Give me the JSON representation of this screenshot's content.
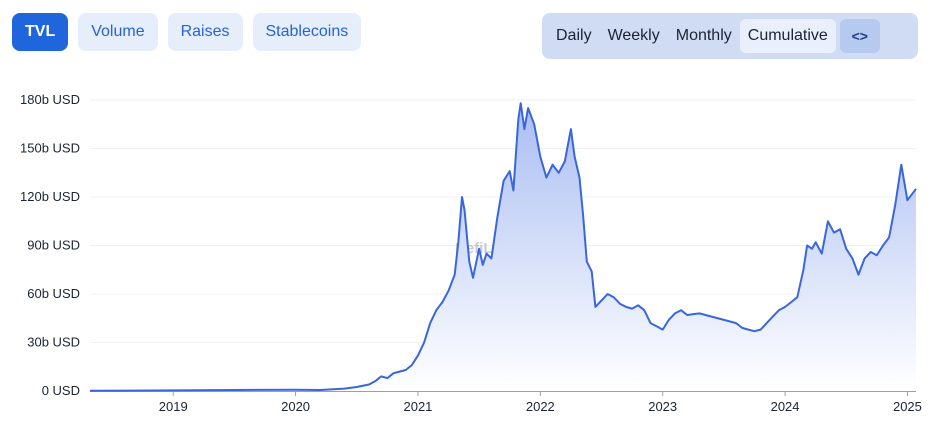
{
  "tabs": [
    {
      "label": "TVL",
      "active": true
    },
    {
      "label": "Volume",
      "active": false
    },
    {
      "label": "Raises",
      "active": false
    },
    {
      "label": "Stablecoins",
      "active": false
    }
  ],
  "periods": [
    {
      "label": "Daily",
      "active": false
    },
    {
      "label": "Weekly",
      "active": false
    },
    {
      "label": "Monthly",
      "active": false
    },
    {
      "label": "Cumulative",
      "active": true
    }
  ],
  "embed_icon": "code-brackets-icon",
  "embed_label": "<>",
  "watermark": "DefiLlama",
  "colors": {
    "line": "#3a66dd",
    "fill_top": "#a9bdf2",
    "fill_bottom": "#ffffff",
    "grid": "#eef0f4",
    "axis": "#9aa0aa"
  },
  "chart_data": {
    "type": "area",
    "title": "",
    "xlabel": "",
    "ylabel": "",
    "unit": "USD",
    "x_ticks": [
      "2019",
      "2020",
      "2021",
      "2022",
      "2023",
      "2024",
      "2025"
    ],
    "y_ticks": [
      "0 USD",
      "30b USD",
      "60b USD",
      "90b USD",
      "120b USD",
      "150b USD",
      "180b USD"
    ],
    "ylim": [
      0,
      180
    ],
    "xlim": [
      2018.32,
      2025.07
    ],
    "grid": true,
    "legend": "none",
    "series": [
      {
        "values": [
          [
            2018.32,
            0.2
          ],
          [
            2019.0,
            0.4
          ],
          [
            2019.5,
            0.6
          ],
          [
            2020.0,
            0.8
          ],
          [
            2020.2,
            0.6
          ],
          [
            2020.4,
            1.5
          ],
          [
            2020.5,
            2.5
          ],
          [
            2020.6,
            4
          ],
          [
            2020.65,
            6
          ],
          [
            2020.7,
            9
          ],
          [
            2020.75,
            8
          ],
          [
            2020.8,
            11
          ],
          [
            2020.85,
            12
          ],
          [
            2020.9,
            13
          ],
          [
            2020.95,
            16
          ],
          [
            2021.0,
            22
          ],
          [
            2021.05,
            30
          ],
          [
            2021.1,
            42
          ],
          [
            2021.15,
            50
          ],
          [
            2021.2,
            55
          ],
          [
            2021.25,
            62
          ],
          [
            2021.3,
            72
          ],
          [
            2021.33,
            92
          ],
          [
            2021.36,
            120
          ],
          [
            2021.38,
            112
          ],
          [
            2021.42,
            80
          ],
          [
            2021.45,
            70
          ],
          [
            2021.5,
            88
          ],
          [
            2021.53,
            78
          ],
          [
            2021.56,
            85
          ],
          [
            2021.6,
            82
          ],
          [
            2021.65,
            108
          ],
          [
            2021.7,
            130
          ],
          [
            2021.75,
            136
          ],
          [
            2021.78,
            124
          ],
          [
            2021.82,
            168
          ],
          [
            2021.84,
            178
          ],
          [
            2021.87,
            162
          ],
          [
            2021.9,
            175
          ],
          [
            2021.95,
            165
          ],
          [
            2022.0,
            145
          ],
          [
            2022.05,
            132
          ],
          [
            2022.1,
            140
          ],
          [
            2022.15,
            135
          ],
          [
            2022.2,
            142
          ],
          [
            2022.25,
            162
          ],
          [
            2022.28,
            145
          ],
          [
            2022.32,
            132
          ],
          [
            2022.35,
            108
          ],
          [
            2022.38,
            80
          ],
          [
            2022.42,
            74
          ],
          [
            2022.45,
            52
          ],
          [
            2022.5,
            56
          ],
          [
            2022.55,
            60
          ],
          [
            2022.6,
            58
          ],
          [
            2022.65,
            54
          ],
          [
            2022.7,
            52
          ],
          [
            2022.75,
            51
          ],
          [
            2022.8,
            53
          ],
          [
            2022.85,
            50
          ],
          [
            2022.9,
            42
          ],
          [
            2022.95,
            40
          ],
          [
            2023.0,
            38
          ],
          [
            2023.05,
            44
          ],
          [
            2023.1,
            48
          ],
          [
            2023.15,
            50
          ],
          [
            2023.2,
            47
          ],
          [
            2023.3,
            48
          ],
          [
            2023.4,
            46
          ],
          [
            2023.5,
            44
          ],
          [
            2023.6,
            42
          ],
          [
            2023.65,
            39
          ],
          [
            2023.7,
            38
          ],
          [
            2023.75,
            37
          ],
          [
            2023.8,
            38
          ],
          [
            2023.85,
            42
          ],
          [
            2023.9,
            46
          ],
          [
            2023.95,
            50
          ],
          [
            2024.0,
            52
          ],
          [
            2024.05,
            55
          ],
          [
            2024.1,
            58
          ],
          [
            2024.15,
            75
          ],
          [
            2024.18,
            90
          ],
          [
            2024.22,
            88
          ],
          [
            2024.25,
            92
          ],
          [
            2024.3,
            85
          ],
          [
            2024.35,
            105
          ],
          [
            2024.4,
            98
          ],
          [
            2024.45,
            100
          ],
          [
            2024.5,
            88
          ],
          [
            2024.55,
            82
          ],
          [
            2024.6,
            72
          ],
          [
            2024.65,
            82
          ],
          [
            2024.7,
            86
          ],
          [
            2024.75,
            84
          ],
          [
            2024.8,
            90
          ],
          [
            2024.85,
            95
          ],
          [
            2024.9,
            115
          ],
          [
            2024.95,
            140
          ],
          [
            2025.0,
            118
          ],
          [
            2025.04,
            122
          ],
          [
            2025.07,
            125
          ]
        ]
      }
    ]
  }
}
